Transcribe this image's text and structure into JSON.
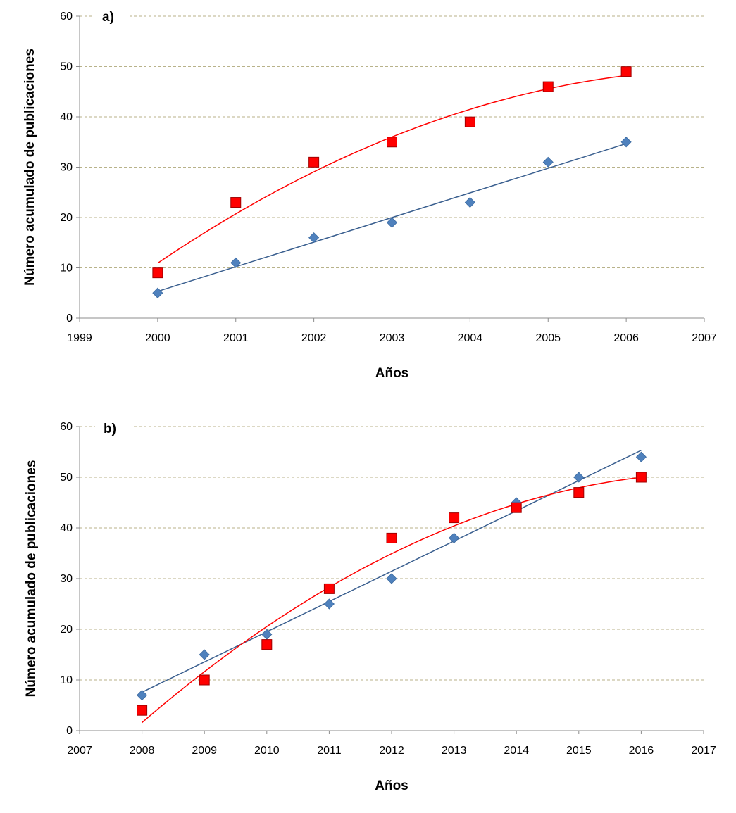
{
  "chart_data": [
    {
      "type": "scatter",
      "panel_label": "a)",
      "xlabel": "Años",
      "ylabel": "Número acumulado de publicaciones",
      "xlim": [
        1999,
        2007
      ],
      "ylim": [
        0,
        60
      ],
      "x_ticks": [
        "1999",
        "2000",
        "2001",
        "2002",
        "2003",
        "2004",
        "2005",
        "2006",
        "2007"
      ],
      "y_ticks": [
        "0",
        "10",
        "20",
        "30",
        "40",
        "50",
        "60"
      ],
      "grid": true,
      "series": [
        {
          "marker": "diamond",
          "color": "#4f81bd",
          "trendline": "linear",
          "trend_color": "#3a5f8f",
          "x": [
            2000,
            2001,
            2002,
            2003,
            2004,
            2005,
            2006
          ],
          "y": [
            5,
            11,
            16,
            19,
            23,
            31,
            35
          ]
        },
        {
          "marker": "square",
          "color": "#ff0000",
          "trendline": "polynomial",
          "trend_color": "#ff0000",
          "x": [
            2000,
            2001,
            2002,
            2003,
            2004,
            2005,
            2006
          ],
          "y": [
            9,
            23,
            31,
            35,
            39,
            46,
            49
          ]
        }
      ]
    },
    {
      "type": "scatter",
      "panel_label": "b)",
      "xlabel": "Años",
      "ylabel": "Número acumulado de publicaciones",
      "xlim": [
        2007,
        2017
      ],
      "ylim": [
        0,
        60
      ],
      "x_ticks": [
        "2007",
        "2008",
        "2009",
        "2010",
        "2011",
        "2012",
        "2013",
        "2014",
        "2015",
        "2016",
        "2017"
      ],
      "y_ticks": [
        "0",
        "10",
        "20",
        "30",
        "40",
        "50",
        "60"
      ],
      "grid": true,
      "series": [
        {
          "marker": "diamond",
          "color": "#4f81bd",
          "trendline": "linear",
          "trend_color": "#3a5f8f",
          "x": [
            2008,
            2009,
            2010,
            2011,
            2012,
            2013,
            2014,
            2015,
            2016
          ],
          "y": [
            7,
            15,
            19,
            25,
            30,
            38,
            45,
            50,
            54
          ]
        },
        {
          "marker": "square",
          "color": "#ff0000",
          "trendline": "polynomial",
          "trend_color": "#ff0000",
          "x": [
            2008,
            2009,
            2010,
            2011,
            2012,
            2013,
            2014,
            2015,
            2016
          ],
          "y": [
            4,
            10,
            17,
            28,
            38,
            42,
            44,
            47,
            50
          ]
        }
      ]
    }
  ]
}
